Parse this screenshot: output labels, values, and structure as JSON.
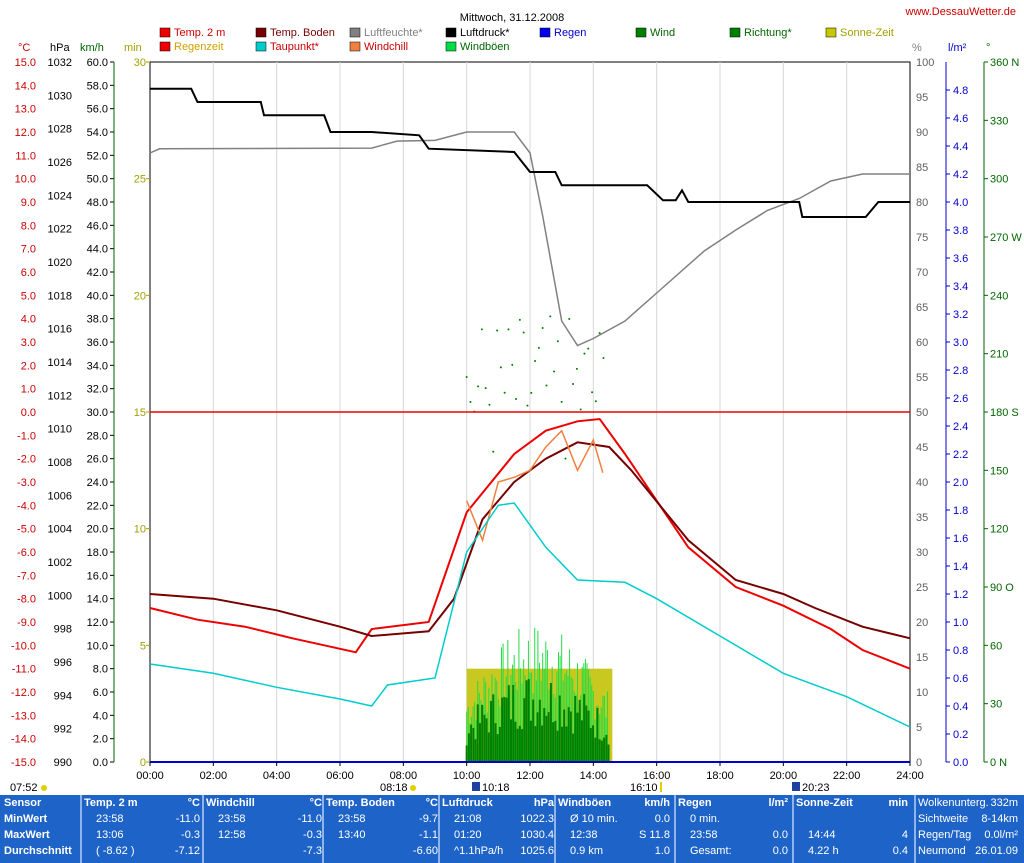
{
  "title": "Mittwoch, 31.12.2008",
  "site": "www.DessauWetter.de",
  "legend": [
    {
      "label": "Temp. 2 m",
      "color": "#ee0000",
      "text_color": "#cc0000"
    },
    {
      "label": "Temp. Boden",
      "color": "#770000",
      "text_color": "#770000"
    },
    {
      "label": "Luftfeuchte*",
      "color": "#808080",
      "text_color": "#808080"
    },
    {
      "label": "Luftdruck*",
      "color": "#000000",
      "text_color": "#000000"
    },
    {
      "label": "Regen",
      "color": "#0000ee",
      "text_color": "#0000cc"
    },
    {
      "label": "Wind",
      "color": "#008000",
      "text_color": "#006600"
    },
    {
      "label": "Richtung*",
      "color": "#008000",
      "text_color": "#006600"
    },
    {
      "label": "Sonne-Zeit",
      "color": "#c8c800",
      "text_color": "#a0a000"
    },
    {
      "label": "Regenzeit",
      "color": "#ee0000",
      "text_color": "#d0a000"
    },
    {
      "label": "Taupunkt*",
      "color": "#00cccc",
      "text_color": "#cc0000"
    },
    {
      "label": "Windchill",
      "color": "#f08040",
      "text_color": "#cc0000"
    },
    {
      "label": "Windböen",
      "color": "#00dd44",
      "text_color": "#006600"
    }
  ],
  "axes_units": {
    "temp": "°C",
    "pressure": "hPa",
    "wind": "km/h",
    "minutes": "min",
    "percent": "%",
    "rain": "l/m²",
    "direction": "°"
  },
  "time_markers": {
    "sunrise": "07:52",
    "first_event": "08:18",
    "rain_event": "10:18",
    "last_event": "16:10",
    "sunset": "20:23"
  },
  "chart_data": {
    "type": "line",
    "title": "Mittwoch, 31.12.2008",
    "x_ticks": [
      "00:00",
      "02:00",
      "04:00",
      "06:00",
      "08:00",
      "10:00",
      "12:00",
      "14:00",
      "16:00",
      "18:00",
      "20:00",
      "22:00",
      "24:00"
    ],
    "axes": {
      "temp": {
        "unit": "°C",
        "range": [
          -15,
          15
        ],
        "ticks": [
          "15.0",
          "14.0",
          "13.0",
          "12.0",
          "11.0",
          "10.0",
          "9.0",
          "8.0",
          "7.0",
          "6.0",
          "5.0",
          "4.0",
          "3.0",
          "2.0",
          "1.0",
          "0.0",
          "-1.0",
          "-2.0",
          "-3.0",
          "-4.0",
          "-5.0",
          "-6.0",
          "-7.0",
          "-8.0",
          "-9.0",
          "-10.0",
          "-11.0",
          "-12.0",
          "-13.0",
          "-14.0",
          "-15.0"
        ]
      },
      "pressure": {
        "unit": "hPa",
        "range": [
          990,
          1032
        ],
        "ticks": [
          "1032",
          "1030",
          "1028",
          "1026",
          "1024",
          "1022",
          "1020",
          "1018",
          "1016",
          "1014",
          "1012",
          "1010",
          "1008",
          "1006",
          "1004",
          "1002",
          "1000",
          "998",
          "996",
          "994",
          "992",
          "990"
        ]
      },
      "wind": {
        "unit": "km/h",
        "range": [
          0,
          60
        ],
        "ticks": [
          "60.0",
          "58.0",
          "56.0",
          "54.0",
          "52.0",
          "50.0",
          "48.0",
          "46.0",
          "44.0",
          "42.0",
          "40.0",
          "38.0",
          "36.0",
          "34.0",
          "32.0",
          "30.0",
          "28.0",
          "26.0",
          "24.0",
          "22.0",
          "20.0",
          "18.0",
          "16.0",
          "14.0",
          "12.0",
          "10.0",
          "8.0",
          "6.0",
          "4.0",
          "2.0",
          "0.0"
        ]
      },
      "minutes": {
        "unit": "min",
        "range": [
          0,
          30
        ],
        "ticks": [
          "30",
          "25",
          "20",
          "15",
          "10",
          "5",
          "0"
        ]
      },
      "humidity": {
        "unit": "%",
        "range": [
          0,
          100
        ],
        "ticks": [
          "100",
          "95",
          "90",
          "85",
          "80",
          "75",
          "70",
          "65",
          "60",
          "55",
          "50",
          "45",
          "40",
          "35",
          "30",
          "25",
          "20",
          "15",
          "10",
          "5",
          "0"
        ]
      },
      "rain": {
        "unit": "l/m²",
        "range": [
          0,
          5
        ],
        "ticks": [
          "4.8",
          "4.6",
          "4.4",
          "4.2",
          "4.0",
          "3.8",
          "3.6",
          "3.4",
          "3.2",
          "3.0",
          "2.8",
          "2.6",
          "2.4",
          "2.2",
          "2.0",
          "1.8",
          "1.6",
          "1.4",
          "1.2",
          "1.0",
          "0.8",
          "0.6",
          "0.4",
          "0.2",
          "0.0"
        ]
      },
      "direction": {
        "unit": "°",
        "range": [
          0,
          360
        ],
        "ticks": [
          "360 N",
          "330",
          "300",
          "270 W",
          "240",
          "210",
          "180 S",
          "150",
          "120",
          "90 O",
          "60",
          "30",
          "0 N"
        ]
      }
    },
    "series": [
      {
        "name": "Temp. 2 m",
        "axis": "temp",
        "color": "#ee0000",
        "points": [
          [
            0,
            -8.4
          ],
          [
            1.5,
            -8.9
          ],
          [
            3,
            -9.2
          ],
          [
            4.5,
            -9.7
          ],
          [
            5.5,
            -10
          ],
          [
            6.5,
            -10.3
          ],
          [
            7,
            -9.3
          ],
          [
            8.8,
            -9
          ],
          [
            10,
            -4.3
          ],
          [
            11.5,
            -1.8
          ],
          [
            12.5,
            -0.8
          ],
          [
            13.5,
            -0.4
          ],
          [
            14.2,
            -0.3
          ],
          [
            15,
            -1.8
          ],
          [
            17,
            -5.8
          ],
          [
            18.5,
            -7.5
          ],
          [
            20,
            -8.3
          ],
          [
            21.5,
            -9.3
          ],
          [
            22.5,
            -10.2
          ],
          [
            24,
            -11
          ]
        ]
      },
      {
        "name": "Temp. Boden",
        "axis": "temp",
        "color": "#770000",
        "points": [
          [
            0,
            -7.8
          ],
          [
            2,
            -8
          ],
          [
            4,
            -8.5
          ],
          [
            6,
            -9.2
          ],
          [
            7,
            -9.6
          ],
          [
            8.8,
            -9.4
          ],
          [
            9.6,
            -8
          ],
          [
            10.5,
            -4.6
          ],
          [
            11.5,
            -3
          ],
          [
            12.5,
            -2
          ],
          [
            13.5,
            -1.3
          ],
          [
            14.5,
            -1.5
          ],
          [
            15.2,
            -2.5
          ],
          [
            17,
            -5.5
          ],
          [
            18.5,
            -7.2
          ],
          [
            20,
            -7.8
          ],
          [
            21,
            -8.4
          ],
          [
            22.5,
            -9.2
          ],
          [
            24,
            -9.7
          ]
        ]
      },
      {
        "name": "Windchill",
        "axis": "temp",
        "color": "#f08040",
        "points": [
          [
            10,
            -3.8
          ],
          [
            10.5,
            -5.5
          ],
          [
            11,
            -3
          ],
          [
            11.5,
            -2.8
          ],
          [
            12,
            -2.5
          ],
          [
            12.5,
            -1.5
          ],
          [
            13,
            -0.8
          ],
          [
            13.5,
            -2.5
          ],
          [
            14,
            -1.2
          ],
          [
            14.3,
            -2.6
          ]
        ]
      },
      {
        "name": "Taupunkt*",
        "axis": "temp",
        "color": "#00cccc",
        "points": [
          [
            0,
            -10.8
          ],
          [
            2,
            -11.2
          ],
          [
            4,
            -11.8
          ],
          [
            6,
            -12.3
          ],
          [
            7,
            -12.6
          ],
          [
            7.5,
            -11.7
          ],
          [
            9,
            -11.4
          ],
          [
            10,
            -6
          ],
          [
            11,
            -4
          ],
          [
            11.5,
            -3.9
          ],
          [
            12.5,
            -5.8
          ],
          [
            13.5,
            -7.2
          ],
          [
            15,
            -7.3
          ],
          [
            16,
            -8
          ],
          [
            18,
            -9.6
          ],
          [
            20,
            -11.2
          ],
          [
            22,
            -12.2
          ],
          [
            24,
            -13.5
          ]
        ]
      },
      {
        "name": "Luftfeuchte*",
        "axis": "humidity",
        "color": "#808080",
        "points": [
          [
            0,
            87
          ],
          [
            0.3,
            87.6
          ],
          [
            7,
            87.7
          ],
          [
            7.8,
            88.7
          ],
          [
            9,
            88.8
          ],
          [
            10,
            90
          ],
          [
            11.5,
            90
          ],
          [
            12,
            87
          ],
          [
            12.4,
            78
          ],
          [
            13,
            63
          ],
          [
            13.5,
            59.5
          ],
          [
            14,
            60.5
          ],
          [
            15,
            63
          ],
          [
            16,
            67
          ],
          [
            17.5,
            73
          ],
          [
            18.5,
            76
          ],
          [
            19.5,
            78.8
          ],
          [
            20.5,
            80.5
          ],
          [
            21.5,
            83
          ],
          [
            22.5,
            84
          ],
          [
            24,
            84
          ]
        ]
      },
      {
        "name": "Luftdruck*",
        "axis": "pressure",
        "color": "#000000",
        "points": [
          [
            0,
            1030.4
          ],
          [
            1.3,
            1030.4
          ],
          [
            1.5,
            1029.6
          ],
          [
            3.5,
            1029.6
          ],
          [
            3.6,
            1028.8
          ],
          [
            5.5,
            1028.8
          ],
          [
            5.7,
            1027.8
          ],
          [
            7,
            1027.8
          ],
          [
            8.5,
            1027.6
          ],
          [
            8.8,
            1026.8
          ],
          [
            11.5,
            1026.6
          ],
          [
            12,
            1025.4
          ],
          [
            12.8,
            1025.4
          ],
          [
            13,
            1024.6
          ],
          [
            15.7,
            1024.6
          ],
          [
            16.2,
            1023.7
          ],
          [
            16.6,
            1023.7
          ],
          [
            16.8,
            1024.3
          ],
          [
            17,
            1023.6
          ],
          [
            20.5,
            1023.6
          ],
          [
            20.6,
            1022.7
          ],
          [
            22.6,
            1022.7
          ],
          [
            23,
            1023.6
          ],
          [
            24,
            1023.6
          ]
        ]
      }
    ],
    "wind_gust_bars": {
      "range_hours": [
        10,
        14.5
      ],
      "peak_kmh": 12
    },
    "wind_avg_bars": {
      "range_hours": [
        10,
        14.5
      ],
      "peak_kmh": 8
    },
    "sun_bar": {
      "start": 10,
      "end": 14.6,
      "height_min": 4
    },
    "zero_line_temp": 0
  },
  "stats": {
    "sensor_header": "Sensor",
    "row_labels": [
      "MinWert",
      "MaxWert",
      "Durchschnitt"
    ],
    "temp2m": {
      "header": "Temp. 2 m",
      "unit": "°C",
      "rows": [
        [
          "23:58",
          "-11.0"
        ],
        [
          "13:06",
          "-0.3"
        ],
        [
          "( -8.62 )",
          "-7.12"
        ]
      ]
    },
    "windchill": {
      "header": "Windchill",
      "unit": "°C",
      "rows": [
        [
          "23:58",
          "-11.0"
        ],
        [
          "12:58",
          "-0.3"
        ],
        [
          "",
          "-7.3"
        ]
      ]
    },
    "tempboden": {
      "header": "Temp. Boden",
      "unit": "°C",
      "rows": [
        [
          "23:58",
          "-9.7"
        ],
        [
          "13:40",
          "-1.1"
        ],
        [
          "",
          "-6.60"
        ]
      ]
    },
    "luftdruck": {
      "header": "Luftdruck",
      "unit": "hPa",
      "rows": [
        [
          "21:08",
          "1022.3"
        ],
        [
          "01:20",
          "1030.4"
        ],
        [
          "^1.1hPa/h",
          "1025.6"
        ]
      ]
    },
    "windboeen": {
      "header": "Windböen",
      "unit": "km/h",
      "rows": [
        [
          "Ø 10 min.",
          "0.0"
        ],
        [
          "12:38",
          "S 11.8"
        ],
        [
          "0.9 km",
          "1.0"
        ]
      ]
    },
    "regen": {
      "header": "Regen",
      "unit": "l/m²",
      "rows": [
        [
          "0 min.",
          ""
        ],
        [
          "23:58",
          "0.0"
        ],
        [
          "Gesamt:",
          "0.0"
        ]
      ]
    },
    "sonne": {
      "header": "Sonne-Zeit",
      "unit": "min",
      "rows": [
        [
          "",
          ""
        ],
        [
          "14:44",
          "4"
        ],
        [
          "4.22 h",
          "0.4"
        ]
      ]
    },
    "extra": [
      [
        "Wolkenunterg.",
        "332m"
      ],
      [
        "Sichtweite",
        "8-14km"
      ],
      [
        "Regen/Tag",
        "0.0l/m²"
      ],
      [
        "Neumond",
        "26.01.09"
      ]
    ]
  }
}
